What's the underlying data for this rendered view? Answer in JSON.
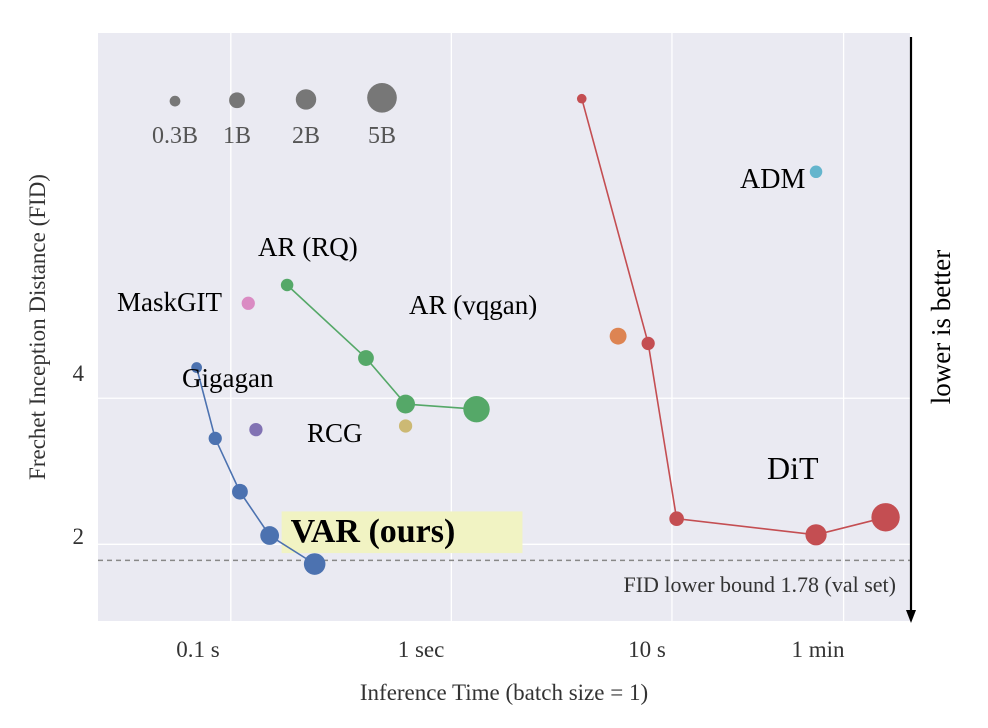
{
  "chart_data": {
    "type": "scatter",
    "xlabel": "Inference Time (batch size = 1)",
    "ylabel": "Frechet Inception Distance (FID)",
    "x_scale": "log",
    "x_unit": "seconds",
    "xlim": [
      0.025,
      120
    ],
    "ylim": [
      0.95,
      9.0
    ],
    "grid": true,
    "x_ticks": [
      {
        "value": 0.1,
        "label": "0.1 s"
      },
      {
        "value": 1,
        "label": "1 sec"
      },
      {
        "value": 10,
        "label": "10 s"
      },
      {
        "value": 60,
        "label": "1 min"
      }
    ],
    "y_ticks": [
      {
        "value": 2,
        "label": "2"
      },
      {
        "value": 4,
        "label": "4"
      }
    ],
    "size_legend": [
      {
        "label": "0.3B",
        "params_b": 0.3
      },
      {
        "label": "1B",
        "params_b": 1
      },
      {
        "label": "2B",
        "params_b": 2
      },
      {
        "label": "5B",
        "params_b": 5
      }
    ],
    "lower_bound": {
      "value": 1.78,
      "label": "FID lower bound 1.78 (val set)"
    },
    "side_label": "lower is better",
    "series": [
      {
        "name": "VAR (ours)",
        "color": "#4c72b0",
        "connected": true,
        "highlight": "#f1f3c3",
        "points": [
          {
            "x": 0.07,
            "y": 4.42,
            "params_b": 0.3
          },
          {
            "x": 0.085,
            "y": 3.45,
            "params_b": 0.6
          },
          {
            "x": 0.11,
            "y": 2.72,
            "params_b": 1.0
          },
          {
            "x": 0.15,
            "y": 2.12,
            "params_b": 1.6
          },
          {
            "x": 0.24,
            "y": 1.73,
            "params_b": 2.3
          }
        ]
      },
      {
        "name": "AR (RQ)",
        "color": "#55a868",
        "connected": true,
        "points": [
          {
            "x": 0.18,
            "y": 5.55,
            "params_b": 0.5
          },
          {
            "x": 0.41,
            "y": 4.55,
            "params_b": 1.0
          },
          {
            "x": 0.62,
            "y": 3.92,
            "params_b": 1.6
          },
          {
            "x": 1.3,
            "y": 3.85,
            "params_b": 3.8
          }
        ]
      },
      {
        "name": "DiT",
        "color": "#c44e52",
        "connected": true,
        "points": [
          {
            "x": 3.9,
            "y": 8.1,
            "params_b": 0.2
          },
          {
            "x": 7.8,
            "y": 4.75,
            "params_b": 0.6
          },
          {
            "x": 10.5,
            "y": 2.35,
            "params_b": 0.8
          },
          {
            "x": 45,
            "y": 2.13,
            "params_b": 2.2
          },
          {
            "x": 93,
            "y": 2.37,
            "params_b": 4.5
          }
        ]
      },
      {
        "name": "MaskGIT",
        "color": "#da8bc3",
        "connected": false,
        "points": [
          {
            "x": 0.12,
            "y": 5.3,
            "params_b": 0.6
          }
        ]
      },
      {
        "name": "Gigagan",
        "color": "#8172b3",
        "connected": false,
        "points": [
          {
            "x": 0.13,
            "y": 3.57,
            "params_b": 0.6
          }
        ]
      },
      {
        "name": "RCG",
        "color": "#ccb974",
        "connected": false,
        "points": [
          {
            "x": 0.62,
            "y": 3.62,
            "params_b": 0.6
          }
        ]
      },
      {
        "name": "AR (vqgan)",
        "color": "#dd8452",
        "connected": false,
        "points": [
          {
            "x": 5.7,
            "y": 4.85,
            "params_b": 1.2
          }
        ]
      },
      {
        "name": "ADM",
        "color": "#64b5cd",
        "connected": false,
        "points": [
          {
            "x": 45,
            "y": 7.1,
            "params_b": 0.5
          }
        ]
      }
    ]
  }
}
